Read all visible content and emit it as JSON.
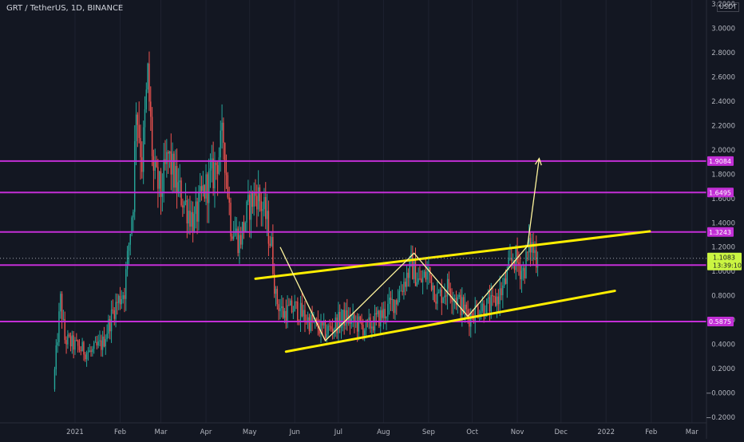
{
  "header": {
    "title": "GRT / TetherUS, 1D, BINANCE",
    "currency_tag": "USDT"
  },
  "colors": {
    "background": "#131722",
    "up": "#26a69a",
    "down": "#ef5350",
    "level": "#c32fd6",
    "channel": "#ffee00",
    "pattern": "#fff59d",
    "last_price": "#cbf542",
    "grid": "#1e2230",
    "axis_text": "#b2b5be"
  },
  "chart_data": {
    "type": "candlestick",
    "title": "GRT / TetherUS, 1D, BINANCE",
    "ylim": [
      -0.23,
      3.2
    ],
    "x_ticks": [
      "2021",
      "Feb",
      "Mar",
      "Apr",
      "May",
      "Jun",
      "Jul",
      "Aug",
      "Sep",
      "Oct",
      "Nov",
      "Dec",
      "2022",
      "Feb",
      "Mar"
    ],
    "x_tick_dates": [
      "2021-01-01",
      "2021-02-01",
      "2021-03-01",
      "2021-04-01",
      "2021-05-01",
      "2021-06-01",
      "2021-07-01",
      "2021-08-01",
      "2021-09-01",
      "2021-10-01",
      "2021-11-01",
      "2021-12-01",
      "2022-01-01",
      "2022-02-01",
      "2022-03-01"
    ],
    "y_ticks": [
      "3.2000",
      "3.0000",
      "2.8000",
      "2.6000",
      "2.4000",
      "2.2000",
      "2.0000",
      "1.8000",
      "1.6000",
      "1.4000",
      "1.2000",
      "1.0000",
      "0.8000",
      "0.6000",
      "0.4000",
      "0.2000",
      "−0.0000",
      "−0.2000"
    ],
    "y_tick_values": [
      3.2,
      3.0,
      2.8,
      2.6,
      2.4,
      2.2,
      2.0,
      1.8,
      1.6,
      1.4,
      1.2,
      1.0,
      0.8,
      0.6,
      0.4,
      0.2,
      0.0,
      -0.2
    ],
    "grid": false,
    "price_path": [
      [
        "2020-12-17",
        0.03
      ],
      [
        "2020-12-22",
        0.76
      ],
      [
        "2020-12-25",
        0.44
      ],
      [
        "2021-01-05",
        0.36
      ],
      [
        "2021-01-12",
        0.33
      ],
      [
        "2021-01-20",
        0.41
      ],
      [
        "2021-01-28",
        0.7
      ],
      [
        "2021-02-04",
        0.85
      ],
      [
        "2021-02-10",
        1.6
      ],
      [
        "2021-02-12",
        2.4
      ],
      [
        "2021-02-16",
        1.9
      ],
      [
        "2021-02-20",
        2.6
      ],
      [
        "2021-02-24",
        1.8
      ],
      [
        "2021-03-01",
        1.65
      ],
      [
        "2021-03-06",
        1.95
      ],
      [
        "2021-03-12",
        1.7
      ],
      [
        "2021-03-18",
        1.55
      ],
      [
        "2021-03-24",
        1.4
      ],
      [
        "2021-03-30",
        1.65
      ],
      [
        "2021-04-06",
        1.8
      ],
      [
        "2021-04-13",
        2.1
      ],
      [
        "2021-04-18",
        1.4
      ],
      [
        "2021-04-24",
        1.25
      ],
      [
        "2021-05-01",
        1.55
      ],
      [
        "2021-05-06",
        1.65
      ],
      [
        "2021-05-12",
        1.45
      ],
      [
        "2021-05-16",
        1.2
      ],
      [
        "2021-05-19",
        0.78
      ],
      [
        "2021-05-24",
        0.65
      ],
      [
        "2021-06-01",
        0.7
      ],
      [
        "2021-06-10",
        0.6
      ],
      [
        "2021-06-22",
        0.5
      ],
      [
        "2021-07-05",
        0.62
      ],
      [
        "2021-07-20",
        0.53
      ],
      [
        "2021-08-01",
        0.65
      ],
      [
        "2021-08-10",
        0.78
      ],
      [
        "2021-08-20",
        1.05
      ],
      [
        "2021-08-26",
        0.9
      ],
      [
        "2021-09-01",
        1.0
      ],
      [
        "2021-09-07",
        0.78
      ],
      [
        "2021-09-15",
        0.88
      ],
      [
        "2021-09-22",
        0.74
      ],
      [
        "2021-09-29",
        0.63
      ],
      [
        "2021-10-05",
        0.7
      ],
      [
        "2021-10-15",
        0.72
      ],
      [
        "2021-10-23",
        0.88
      ],
      [
        "2021-10-29",
        1.12
      ],
      [
        "2021-11-05",
        1.0
      ],
      [
        "2021-11-10",
        1.22
      ],
      [
        "2021-11-15",
        1.11
      ]
    ],
    "horizontal_levels": [
      {
        "value": 1.9084,
        "label": "1.9084"
      },
      {
        "value": 1.6495,
        "label": "1.6495"
      },
      {
        "value": 1.3243,
        "label": "1.3243"
      },
      {
        "value": 1.0521,
        "label": "1.0521"
      },
      {
        "value": 0.5875,
        "label": "0.5875"
      }
    ],
    "channel_lines": [
      {
        "from": [
          "2021-05-05",
          0.94
        ],
        "to": [
          "2022-01-31",
          1.33
        ]
      },
      {
        "from": [
          "2021-05-26",
          0.34
        ],
        "to": [
          "2022-01-07",
          0.84
        ]
      }
    ],
    "pattern_path": [
      [
        "2021-05-22",
        1.2
      ],
      [
        "2021-06-22",
        0.43
      ],
      [
        "2021-08-22",
        1.15
      ],
      [
        "2021-09-28",
        0.63
      ],
      [
        "2021-11-08",
        1.21
      ],
      [
        "2021-11-16",
        1.93
      ]
    ],
    "last_price": {
      "value": 1.1083,
      "label": "1.1083",
      "countdown": "13:39:10"
    }
  }
}
